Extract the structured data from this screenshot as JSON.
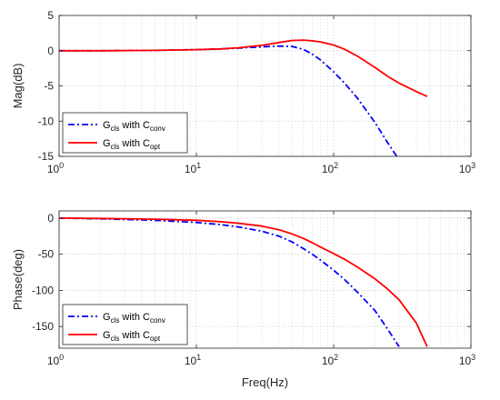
{
  "chart_data": [
    {
      "type": "line",
      "xscale": "log",
      "xlim": [
        1,
        1000
      ],
      "ylim": [
        -15,
        5
      ],
      "xticks": [
        1,
        10,
        100,
        1000
      ],
      "xtick_labels": [
        {
          "base": "10",
          "exp": "0"
        },
        {
          "base": "10",
          "exp": "1"
        },
        {
          "base": "10",
          "exp": "2"
        },
        {
          "base": "10",
          "exp": "3"
        }
      ],
      "yticks": [
        -15,
        -10,
        -5,
        0,
        5
      ],
      "ytick_labels": [
        "-15",
        "-10",
        "-5",
        "0",
        "5"
      ],
      "xlabel": "",
      "ylabel": "Mag(dB)",
      "grid": true,
      "legend_position": "bottom-left",
      "series": [
        {
          "name": {
            "main": "G",
            "sub1": "cls",
            "mid": " with C",
            "sub2": "conv"
          },
          "color": "#0000ff",
          "style": "dash-dot",
          "x": [
            1,
            2,
            5,
            10,
            15,
            20,
            30,
            40,
            50,
            60,
            70,
            80,
            100,
            120,
            150,
            200,
            250,
            300
          ],
          "y": [
            0,
            0,
            0.05,
            0.15,
            0.25,
            0.35,
            0.55,
            0.65,
            0.6,
            0.2,
            -0.5,
            -1.3,
            -3.0,
            -4.6,
            -6.8,
            -10.2,
            -13.2,
            -15.5
          ]
        },
        {
          "name": {
            "main": "G",
            "sub1": "cls",
            "mid": " with C",
            "sub2": "opt"
          },
          "color": "#ff0000",
          "style": "solid",
          "x": [
            1,
            2,
            5,
            10,
            15,
            20,
            30,
            40,
            50,
            60,
            70,
            80,
            100,
            120,
            150,
            200,
            250,
            300,
            400,
            480
          ],
          "y": [
            0,
            0,
            0.05,
            0.15,
            0.25,
            0.4,
            0.75,
            1.15,
            1.45,
            1.5,
            1.4,
            1.25,
            0.8,
            0.2,
            -0.8,
            -2.4,
            -3.7,
            -4.6,
            -5.8,
            -6.5
          ]
        }
      ]
    },
    {
      "type": "line",
      "xscale": "log",
      "xlim": [
        1,
        1000
      ],
      "ylim": [
        -180,
        10
      ],
      "xticks": [
        1,
        10,
        100,
        1000
      ],
      "xtick_labels": [
        {
          "base": "10",
          "exp": "0"
        },
        {
          "base": "10",
          "exp": "1"
        },
        {
          "base": "10",
          "exp": "2"
        },
        {
          "base": "10",
          "exp": "3"
        }
      ],
      "yticks": [
        -150,
        -100,
        -50,
        0
      ],
      "ytick_labels": [
        "-150",
        "-100",
        "-50",
        "0"
      ],
      "xlabel": "Freq(Hz)",
      "ylabel": "Phase(deg)",
      "grid": true,
      "legend_position": "bottom-left",
      "series": [
        {
          "name": {
            "main": "G",
            "sub1": "cls",
            "mid": " with C",
            "sub2": "conv"
          },
          "color": "#0000ff",
          "style": "dash-dot",
          "x": [
            1,
            2,
            5,
            10,
            15,
            20,
            30,
            40,
            50,
            60,
            70,
            80,
            100,
            120,
            150,
            200,
            250,
            300
          ],
          "y": [
            0,
            -1,
            -3,
            -6,
            -9,
            -12,
            -18,
            -25,
            -33,
            -42,
            -50,
            -58,
            -72,
            -85,
            -103,
            -128,
            -155,
            -178
          ]
        },
        {
          "name": {
            "main": "G",
            "sub1": "cls",
            "mid": " with C",
            "sub2": "opt"
          },
          "color": "#ff0000",
          "style": "solid",
          "x": [
            1,
            2,
            5,
            10,
            15,
            20,
            30,
            40,
            50,
            60,
            70,
            80,
            100,
            120,
            150,
            200,
            250,
            300,
            400,
            480
          ],
          "y": [
            0,
            -0.5,
            -1.5,
            -3,
            -5,
            -7,
            -11,
            -16,
            -22,
            -28,
            -34,
            -40,
            -49,
            -57,
            -68,
            -84,
            -99,
            -113,
            -145,
            -178
          ]
        }
      ]
    }
  ]
}
